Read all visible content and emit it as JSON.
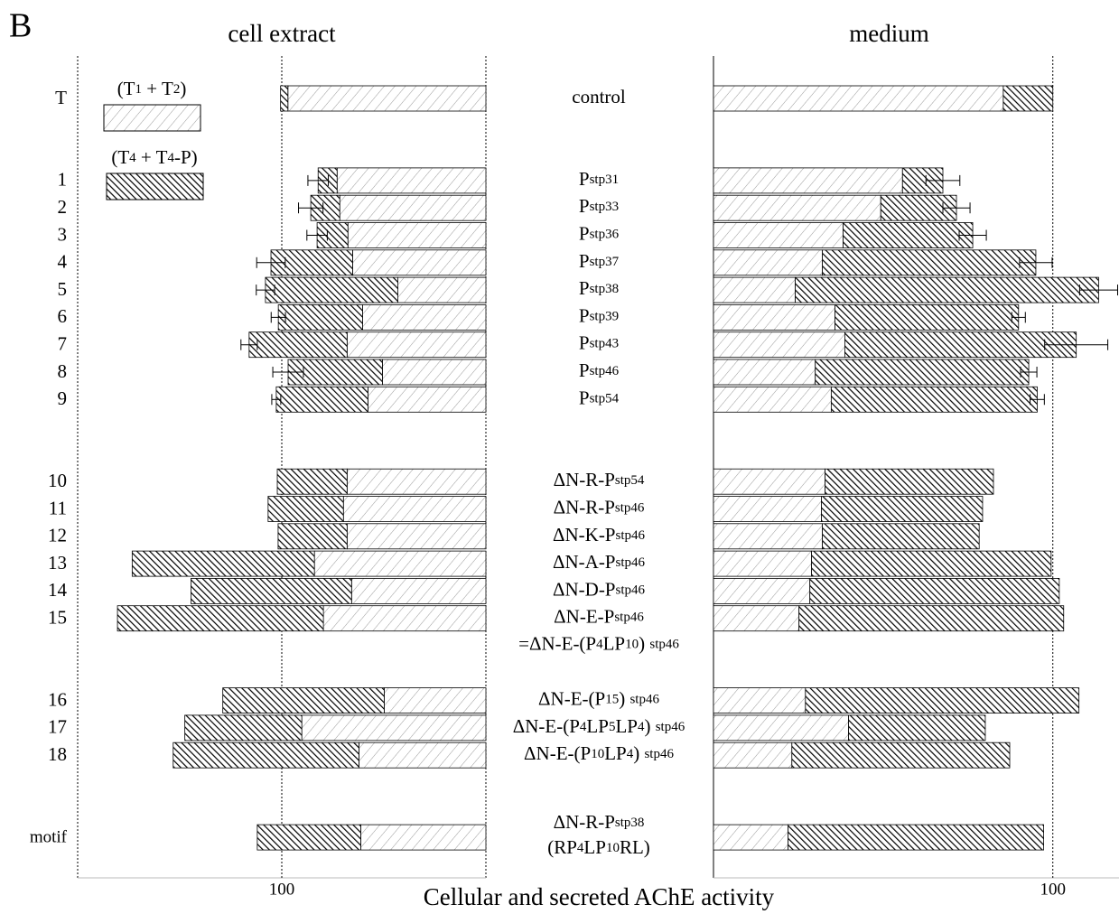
{
  "chart_data": {
    "type": "bar",
    "label": "B",
    "xlabel": "Cellular and secreted AChE activity",
    "categories": [
      "T",
      "1",
      "2",
      "3",
      "4",
      "5",
      "6",
      "7",
      "8",
      "9",
      "10",
      "11",
      "12",
      "13",
      "14",
      "15",
      "16",
      "17",
      "18",
      "motif"
    ],
    "constructs": [
      [
        [
          "control"
        ]
      ],
      [
        [
          "P",
          "stp31"
        ]
      ],
      [
        [
          "P",
          "stp33"
        ]
      ],
      [
        [
          "P",
          "stp36"
        ]
      ],
      [
        [
          "P",
          "stp37"
        ]
      ],
      [
        [
          "P",
          "stp38"
        ]
      ],
      [
        [
          "P",
          "stp39"
        ]
      ],
      [
        [
          "P",
          "stp43"
        ]
      ],
      [
        [
          "P",
          "stp46"
        ]
      ],
      [
        [
          "P",
          "stp54"
        ]
      ],
      [
        [
          "ΔN-R-P",
          "stp54"
        ]
      ],
      [
        [
          "ΔN-R-P",
          "stp46"
        ]
      ],
      [
        [
          "ΔN-K-P",
          "stp46"
        ]
      ],
      [
        [
          "ΔN-A-P",
          "stp46"
        ]
      ],
      [
        [
          "ΔN-D-P",
          "stp46"
        ]
      ],
      [
        [
          "ΔN-E-P",
          "stp46"
        ],
        [
          "=ΔN-E-(P",
          "4",
          "LP",
          "10",
          ") ",
          "stp46"
        ]
      ],
      [
        [
          "ΔN-E-(P",
          "15",
          ") ",
          "stp46"
        ]
      ],
      [
        [
          "ΔN-E-(P",
          "4",
          "LP",
          "5",
          "LP",
          "4",
          ") ",
          "stp46"
        ]
      ],
      [
        [
          "ΔN-E-(P",
          "10",
          "LP",
          "4",
          ") ",
          "stp46"
        ]
      ],
      [
        [
          "ΔN-R-P",
          "stp38"
        ],
        [
          "(RP",
          "4",
          "LP",
          "10",
          "RL)"
        ]
      ]
    ],
    "series": [
      {
        "name": [
          "(T",
          "1",
          " + T",
          "2",
          ")"
        ],
        "pattern": "light"
      },
      {
        "name": [
          "(T",
          "4",
          " + T",
          "4",
          "-P)"
        ],
        "pattern": "dense"
      }
    ],
    "panels": [
      {
        "title": "cell extract",
        "xlim": [
          200,
          0
        ],
        "xticks": [
          100
        ],
        "values": [
          [
            97,
            72.9,
            71.6,
            67.6,
            65.3,
            43.1,
            60.4,
            68,
            50.7,
            57.8,
            68,
            69.8,
            68,
            84,
            65.8,
            79.6,
            49.8,
            90.2,
            62.2,
            61.3
          ],
          [
            3.6,
            9.3,
            14.2,
            15.1,
            40,
            64.9,
            41.3,
            48,
            46.2,
            44.9,
            34.2,
            36.9,
            33.8,
            89.3,
            78.7,
            100.9,
            79.1,
            57.3,
            91,
            50.7
          ]
        ],
        "errors": [
          null,
          5,
          6,
          5,
          7,
          4.5,
          3.5,
          4,
          7.5,
          2.2,
          null,
          null,
          null,
          null,
          null,
          null,
          null,
          null,
          null,
          null
        ]
      },
      {
        "title": "medium",
        "xlim": [
          0,
          119.5
        ],
        "xticks": [
          100
        ],
        "values": [
          [
            85.4,
            55.7,
            49.3,
            38.2,
            32.1,
            24.1,
            35.8,
            38.7,
            30,
            34.7,
            32.9,
            31.8,
            32.1,
            28.9,
            28.4,
            25.2,
            27.1,
            39.8,
            23.1,
            22
          ],
          [
            14.6,
            11.9,
            22.3,
            38.2,
            62.9,
            89.4,
            54.1,
            68.2,
            62.9,
            60.7,
            49.6,
            47.5,
            46.2,
            70.6,
            73.5,
            78,
            80.6,
            40.3,
            64.2,
            75.3
          ]
        ],
        "errors": [
          null,
          5,
          4,
          4,
          4.8,
          5.6,
          2,
          9.3,
          2.4,
          2.1,
          null,
          null,
          null,
          null,
          null,
          null,
          null,
          null,
          null,
          null
        ]
      }
    ]
  }
}
